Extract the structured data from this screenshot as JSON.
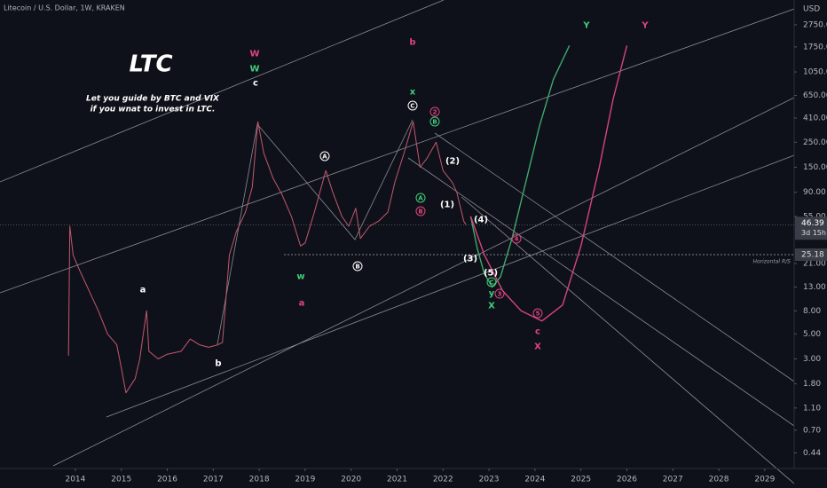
{
  "chart_data": {
    "type": "line",
    "title": "Litecoin / U.S. Dollar, 1W, KRAKEN",
    "currency": "USD",
    "log_scale": true,
    "xlim": [
      2012.36,
      2029.64
    ],
    "xticks": [
      2014,
      2015,
      2016,
      2017,
      2018,
      2019,
      2020,
      2021,
      2022,
      2023,
      2024,
      2025,
      2026,
      2027,
      2028,
      2029
    ],
    "ylim": [
      0.32,
      4560
    ],
    "yticks": [
      {
        "value": 2750,
        "label": "2750.00"
      },
      {
        "value": 1750,
        "label": "1750.00"
      },
      {
        "value": 1050,
        "label": "1050.00"
      },
      {
        "value": 650,
        "label": "650.00"
      },
      {
        "value": 410,
        "label": "410.00"
      },
      {
        "value": 250,
        "label": "250.00"
      },
      {
        "value": 150,
        "label": "150.00"
      },
      {
        "value": 90,
        "label": "90.00"
      },
      {
        "value": 55,
        "label": "55.00"
      },
      {
        "value": 21,
        "label": "21.00"
      },
      {
        "value": 13,
        "label": "13.00"
      },
      {
        "value": 8,
        "label": "8.00"
      },
      {
        "value": 5,
        "label": "5.00"
      },
      {
        "value": 3,
        "label": "3.00"
      },
      {
        "value": 1.8,
        "label": "1.80"
      },
      {
        "value": 1.1,
        "label": "1.10"
      },
      {
        "value": 0.7,
        "label": "0.70"
      },
      {
        "value": 0.44,
        "label": "0.44"
      }
    ],
    "last_price": 46.39,
    "countdown": "3d 15h",
    "level": {
      "value": 25.18,
      "label": "Horizontal R/S"
    },
    "series": [
      {
        "color": "#c2586e",
        "x": [
          2013.85,
          2013.88,
          2013.95,
          2014.1,
          2014.3,
          2014.5,
          2014.7,
          2014.9,
          2015.0,
          2015.1,
          2015.3,
          2015.4,
          2015.55,
          2015.6,
          2015.8,
          2016.0,
          2016.3,
          2016.5,
          2016.7,
          2016.9,
          2017.1,
          2017.2,
          2017.35,
          2017.5,
          2017.7,
          2017.85,
          2017.97,
          2018.1,
          2018.3,
          2018.5,
          2018.7,
          2018.9,
          2019.0,
          2019.2,
          2019.45,
          2019.6,
          2019.8,
          2019.95,
          2020.1,
          2020.2,
          2020.4,
          2020.6,
          2020.8,
          2020.95,
          2021.15,
          2021.35,
          2021.5,
          2021.65,
          2021.85,
          2022.0,
          2022.2,
          2022.3,
          2022.45,
          2022.5
        ],
        "values": [
          3.2,
          45,
          25,
          18,
          12,
          8,
          5,
          4,
          2.5,
          1.5,
          2,
          3,
          8,
          3.5,
          3,
          3.3,
          3.5,
          4.5,
          4,
          3.8,
          4,
          4.2,
          25,
          40,
          60,
          100,
          380,
          200,
          120,
          85,
          55,
          30,
          32,
          60,
          140,
          90,
          55,
          45,
          65,
          35,
          45,
          50,
          60,
          110,
          200,
          380,
          150,
          180,
          250,
          140,
          110,
          90,
          50,
          46.39
        ]
      },
      {
        "color": "#3fa86a",
        "x": [
          2022.6,
          2022.75,
          2022.9,
          2023.07,
          2023.25,
          2023.5,
          2023.8,
          2024.1,
          2024.4,
          2024.75
        ],
        "values": [
          55,
          28,
          17,
          13,
          16,
          35,
          110,
          350,
          900,
          1800
        ]
      },
      {
        "color": "#d6457a",
        "x": [
          2022.6,
          2022.9,
          2023.3,
          2023.7,
          2024.15,
          2024.6,
          2025.0,
          2025.4,
          2025.7,
          2026.0
        ],
        "values": [
          55,
          25,
          12,
          8,
          6.5,
          9,
          30,
          150,
          600,
          1800
        ]
      }
    ],
    "heading": "LTC",
    "note": [
      "Let you guide by BTC and VIX",
      "if you wnat to invest in LTC."
    ],
    "annotations": [
      "W",
      "W",
      "c",
      "a",
      "b",
      "A",
      "B",
      "w",
      "a",
      "b",
      "x",
      "C",
      "2",
      "B",
      "(2)",
      "A",
      "B",
      "(1)",
      "(4)",
      "(3)",
      "(5)",
      "C",
      "y",
      "X",
      "4",
      "3",
      "5",
      "c",
      "X",
      "Y",
      "Y"
    ]
  }
}
